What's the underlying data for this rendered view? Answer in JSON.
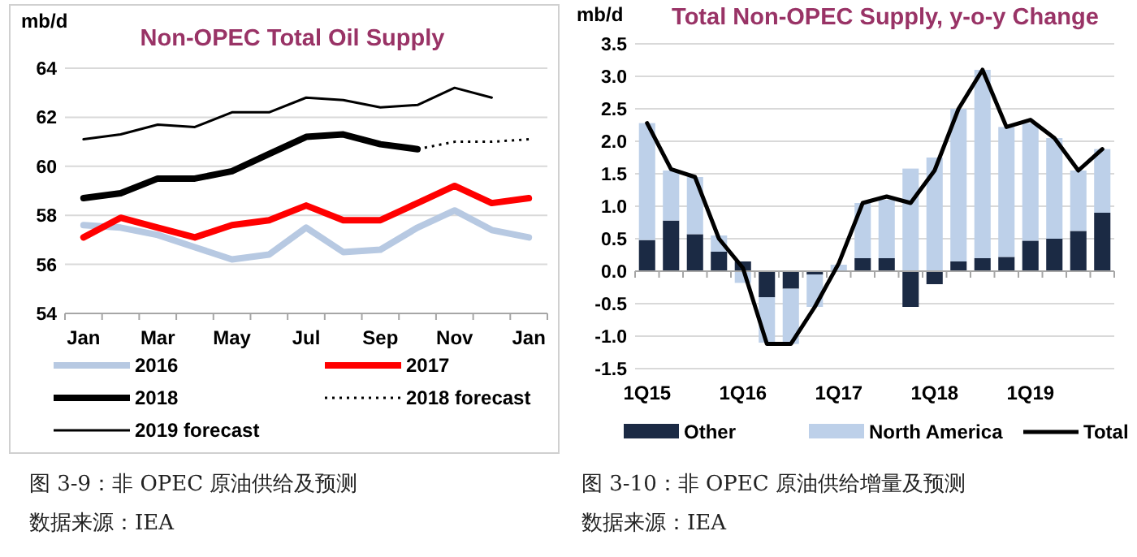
{
  "chart_data": [
    {
      "type": "line",
      "title": "Non-OPEC Total Oil Supply",
      "ylabel": "mb/d",
      "categories": [
        "Jan",
        null,
        "Mar",
        null,
        "May",
        null,
        "Jul",
        null,
        "Sep",
        null,
        "Nov",
        null,
        "Jan"
      ],
      "series": [
        {
          "name": "2016",
          "color": "#b7c9e2",
          "values": [
            57.6,
            57.5,
            57.2,
            56.7,
            56.2,
            56.4,
            57.5,
            56.5,
            56.6,
            57.5,
            58.2,
            57.4,
            57.1
          ]
        },
        {
          "name": "2017",
          "color": "#ff0000",
          "values": [
            57.1,
            57.9,
            57.5,
            57.1,
            57.6,
            57.8,
            58.4,
            57.8,
            57.8,
            58.5,
            59.2,
            58.5,
            58.7
          ]
        },
        {
          "name": "2018",
          "color": "#000000",
          "values": [
            58.7,
            58.9,
            59.5,
            59.5,
            59.8,
            60.5,
            61.2,
            61.3,
            60.9,
            60.7,
            null,
            null,
            null
          ]
        },
        {
          "name": "2018 forecast",
          "color": "#000000",
          "line_style": "dotted",
          "values": [
            null,
            null,
            null,
            null,
            null,
            null,
            null,
            null,
            null,
            60.7,
            61.0,
            61.0,
            61.1
          ]
        },
        {
          "name": "2019 forecast",
          "color": "#000000",
          "values": [
            61.1,
            61.3,
            61.7,
            61.6,
            62.2,
            62.2,
            62.8,
            62.7,
            62.4,
            62.5,
            63.2,
            62.8,
            null
          ]
        }
      ],
      "ylim": [
        54,
        64
      ],
      "yticks": [
        54,
        56,
        58,
        60,
        62,
        64
      ],
      "grid": "y",
      "legend": "bottom",
      "annotations": [
        "图 3-9：非 OPEC 原油供给及预测",
        "数据来源：IEA"
      ]
    },
    {
      "type": "bar",
      "stacked": true,
      "title": "Total Non-OPEC Supply, y-o-y Change",
      "ylabel": "mb/d",
      "categories": [
        "1Q15",
        null,
        null,
        null,
        "1Q16",
        null,
        null,
        null,
        "1Q17",
        null,
        null,
        null,
        "1Q18",
        null,
        null,
        null,
        "1Q19",
        null,
        null,
        null
      ],
      "series": [
        {
          "name": "Other",
          "color": "#1b2a44",
          "values": [
            0.48,
            0.78,
            0.57,
            0.3,
            0.15,
            -0.4,
            -0.27,
            -0.05,
            null,
            0.2,
            0.2,
            -0.55,
            -0.2,
            0.15,
            0.2,
            0.22,
            0.47,
            0.5,
            0.62,
            0.9
          ]
        },
        {
          "name": "North America",
          "color": "#bdd0e9",
          "values": [
            1.8,
            0.77,
            0.88,
            0.25,
            -0.18,
            -0.7,
            -0.85,
            -0.5,
            0.1,
            0.85,
            0.9,
            1.58,
            1.75,
            2.35,
            2.9,
            2.0,
            1.81,
            1.55,
            0.93,
            0.98
          ]
        },
        {
          "name": "Total",
          "type": "line",
          "color": "#000000",
          "values": [
            2.28,
            1.57,
            1.45,
            0.5,
            0.05,
            -1.12,
            -1.12,
            -0.55,
            0.12,
            1.05,
            1.15,
            1.05,
            1.55,
            2.5,
            3.1,
            2.22,
            2.33,
            2.05,
            1.55,
            1.88
          ]
        }
      ],
      "ylim": [
        -1.5,
        3.5
      ],
      "yticks": [
        -1.5,
        {
          "value": -1,
          "label": "-1.0"
        },
        -0.5,
        {
          "value": 0,
          "label": "0.0"
        },
        0.5,
        {
          "value": 1,
          "label": "1.0"
        },
        1.5,
        {
          "value": 2,
          "label": "2.0"
        },
        2.5,
        {
          "value": 3,
          "label": "3.0"
        },
        3.5
      ],
      "grid": "y",
      "legend": "bottom",
      "annotations": [
        "图 3-10：非 OPEC 原油供给增量及预测",
        "数据来源：IEA"
      ]
    }
  ]
}
